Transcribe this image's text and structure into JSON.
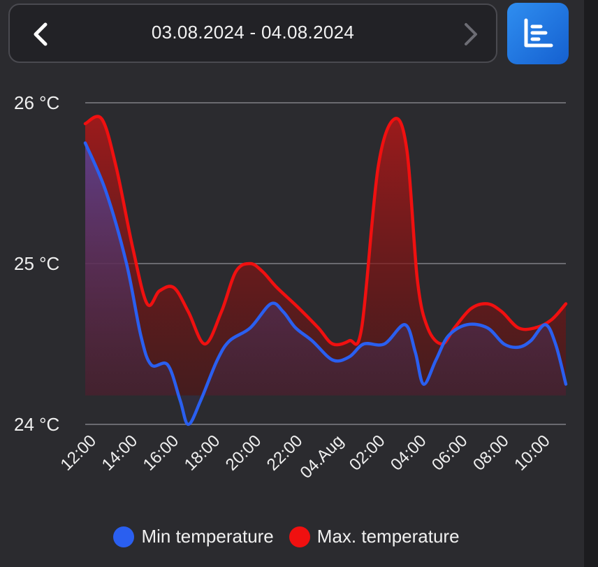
{
  "header": {
    "date_range": "03.08.2024 - 04.08.2024",
    "prev_icon": "chevron-left-icon",
    "next_icon": "chevron-right-icon",
    "chart_toggle_icon": "bar-chart-icon",
    "accent_color": "#1f74e0"
  },
  "chart_data": {
    "type": "area",
    "x_ticks": [
      "12:00",
      "14:00",
      "16:00",
      "18:00",
      "20:00",
      "22:00",
      "04.Aug",
      "02:00",
      "04:00",
      "06:00",
      "08:00",
      "10:00"
    ],
    "y_ticks": [
      "24 °C",
      "25 °C",
      "26 °C"
    ],
    "ylim": [
      24,
      26
    ],
    "xlim": [
      12,
      35.3
    ],
    "grid": true,
    "legend_position": "bottom",
    "series": [
      {
        "name": "Min temperature",
        "color": "#2a5ff0",
        "points": [
          [
            12.0,
            25.75
          ],
          [
            13.0,
            25.45
          ],
          [
            14.0,
            25.0
          ],
          [
            14.7,
            24.55
          ],
          [
            15.2,
            24.37
          ],
          [
            16.0,
            24.37
          ],
          [
            16.6,
            24.15
          ],
          [
            17.0,
            24.0
          ],
          [
            17.6,
            24.15
          ],
          [
            18.4,
            24.4
          ],
          [
            19.0,
            24.52
          ],
          [
            20.0,
            24.6
          ],
          [
            21.0,
            24.75
          ],
          [
            21.6,
            24.7
          ],
          [
            22.2,
            24.6
          ],
          [
            23.0,
            24.52
          ],
          [
            24.0,
            24.4
          ],
          [
            24.8,
            24.42
          ],
          [
            25.5,
            24.5
          ],
          [
            26.5,
            24.5
          ],
          [
            27.5,
            24.62
          ],
          [
            28.0,
            24.45
          ],
          [
            28.4,
            24.25
          ],
          [
            29.0,
            24.4
          ],
          [
            29.6,
            24.55
          ],
          [
            30.5,
            24.62
          ],
          [
            31.5,
            24.6
          ],
          [
            32.3,
            24.5
          ],
          [
            33.0,
            24.48
          ],
          [
            33.6,
            24.52
          ],
          [
            34.3,
            24.62
          ],
          [
            34.8,
            24.5
          ],
          [
            35.3,
            24.25
          ]
        ]
      },
      {
        "name": "Max. temperature",
        "color": "#f01010",
        "points": [
          [
            12.0,
            25.87
          ],
          [
            12.8,
            25.9
          ],
          [
            13.5,
            25.6
          ],
          [
            14.3,
            25.1
          ],
          [
            15.0,
            24.75
          ],
          [
            15.6,
            24.83
          ],
          [
            16.3,
            24.85
          ],
          [
            17.0,
            24.7
          ],
          [
            17.8,
            24.5
          ],
          [
            18.6,
            24.7
          ],
          [
            19.3,
            24.95
          ],
          [
            20.0,
            25.0
          ],
          [
            20.6,
            24.95
          ],
          [
            21.3,
            24.85
          ],
          [
            22.3,
            24.73
          ],
          [
            23.3,
            24.6
          ],
          [
            24.0,
            24.5
          ],
          [
            24.8,
            24.52
          ],
          [
            25.4,
            24.6
          ],
          [
            26.2,
            25.6
          ],
          [
            27.0,
            25.9
          ],
          [
            27.6,
            25.7
          ],
          [
            28.1,
            24.9
          ],
          [
            28.6,
            24.6
          ],
          [
            29.3,
            24.5
          ],
          [
            29.9,
            24.6
          ],
          [
            30.7,
            24.72
          ],
          [
            31.5,
            24.75
          ],
          [
            32.2,
            24.7
          ],
          [
            33.0,
            24.6
          ],
          [
            33.8,
            24.6
          ],
          [
            34.6,
            24.65
          ],
          [
            35.3,
            24.75
          ]
        ]
      }
    ]
  },
  "legend": {
    "min_label": "Min temperature",
    "max_label": "Max. temperature",
    "min_color": "#2a5ff0",
    "max_color": "#f01010"
  }
}
